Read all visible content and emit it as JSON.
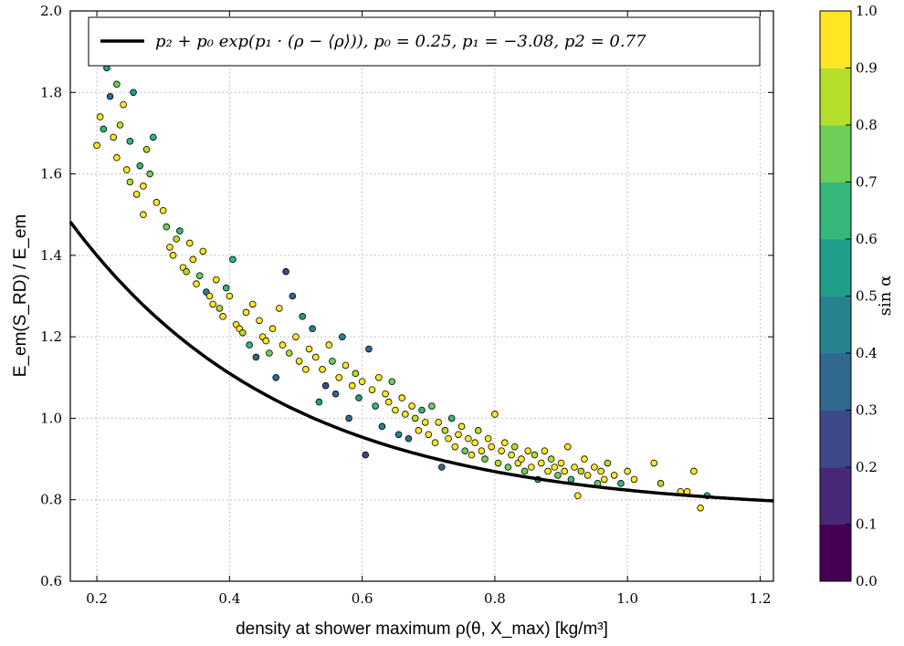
{
  "chart_data": {
    "type": "scatter",
    "xlabel": "density at shower maximum ρ(θ, X_max) [kg/m³]",
    "ylabel": "E_em(S_RD) / E_em",
    "xlim": [
      0.16,
      1.22
    ],
    "ylim": [
      0.6,
      2.0
    ],
    "x_ticks": [
      0.2,
      0.4,
      0.6,
      0.8,
      1.0,
      1.2
    ],
    "y_ticks": [
      0.6,
      0.8,
      1.0,
      1.2,
      1.4,
      1.6,
      1.8,
      2.0
    ],
    "x_tick_labels": [
      "0.2",
      "0.4",
      "0.6",
      "0.8",
      "1.0",
      "1.2"
    ],
    "y_tick_labels": [
      "0.6",
      "0.8",
      "1.0",
      "1.2",
      "1.4",
      "1.6",
      "1.8",
      "2.0"
    ],
    "grid": true,
    "legend_position": "top",
    "legend_label": "p₂ + p₀ exp(p₁ · (ρ − ⟨ρ⟩)), p₀ = 0.25, p₁ = −3.08, p2 = 0.77",
    "fit": {
      "name": "p₂ + p₀ exp(p₁ · (ρ − ⟨ρ⟩)), p₀ = 0.25, p₁ = −3.08, p2 = 0.77",
      "color": "#000000",
      "p0": 0.25,
      "p1": -3.08,
      "p2": 0.77,
      "rho_mean": 0.5
    },
    "colorbar": {
      "label": "sin α",
      "range": [
        0.0,
        1.0
      ],
      "ticks": [
        0.0,
        0.1,
        0.2,
        0.3,
        0.4,
        0.5,
        0.6,
        0.7,
        0.8,
        0.9,
        1.0
      ],
      "tick_labels": [
        "0.0",
        "0.1",
        "0.2",
        "0.3",
        "0.4",
        "0.5",
        "0.6",
        "0.7",
        "0.8",
        "0.9",
        "1.0"
      ],
      "colors": [
        "#440154",
        "#482878",
        "#3e4989",
        "#31688e",
        "#26828e",
        "#1f9e89",
        "#35b779",
        "#6ece58",
        "#b5de2b",
        "#fde725"
      ]
    },
    "points": [
      [
        0.2,
        1.67,
        0.95
      ],
      [
        0.205,
        1.74,
        0.9
      ],
      [
        0.21,
        1.71,
        0.6
      ],
      [
        0.215,
        1.86,
        0.5
      ],
      [
        0.22,
        1.79,
        0.3
      ],
      [
        0.225,
        1.69,
        0.9
      ],
      [
        0.23,
        1.82,
        0.7
      ],
      [
        0.23,
        1.64,
        0.95
      ],
      [
        0.235,
        1.72,
        0.8
      ],
      [
        0.24,
        1.77,
        0.95
      ],
      [
        0.245,
        1.61,
        0.95
      ],
      [
        0.25,
        1.58,
        0.8
      ],
      [
        0.25,
        1.68,
        0.6
      ],
      [
        0.255,
        1.8,
        0.5
      ],
      [
        0.26,
        1.55,
        0.95
      ],
      [
        0.265,
        1.62,
        0.6
      ],
      [
        0.27,
        1.5,
        0.95
      ],
      [
        0.27,
        1.57,
        0.9
      ],
      [
        0.275,
        1.66,
        0.8
      ],
      [
        0.28,
        1.6,
        0.7
      ],
      [
        0.285,
        1.69,
        0.6
      ],
      [
        0.29,
        1.53,
        0.9
      ],
      [
        0.3,
        1.51,
        0.95
      ],
      [
        0.305,
        1.47,
        0.7
      ],
      [
        0.31,
        1.42,
        0.95
      ],
      [
        0.315,
        1.4,
        0.9
      ],
      [
        0.32,
        1.44,
        0.8
      ],
      [
        0.325,
        1.46,
        0.6
      ],
      [
        0.33,
        1.37,
        0.95
      ],
      [
        0.335,
        1.36,
        0.8
      ],
      [
        0.34,
        1.43,
        0.95
      ],
      [
        0.345,
        1.39,
        0.9
      ],
      [
        0.35,
        1.33,
        0.95
      ],
      [
        0.355,
        1.35,
        0.7
      ],
      [
        0.36,
        1.41,
        0.95
      ],
      [
        0.365,
        1.31,
        0.4
      ],
      [
        0.37,
        1.3,
        0.95
      ],
      [
        0.375,
        1.28,
        0.9
      ],
      [
        0.38,
        1.34,
        0.95
      ],
      [
        0.385,
        1.27,
        0.8
      ],
      [
        0.39,
        1.25,
        0.95
      ],
      [
        0.395,
        1.32,
        0.6
      ],
      [
        0.4,
        1.3,
        0.95
      ],
      [
        0.405,
        1.39,
        0.6
      ],
      [
        0.41,
        1.23,
        0.95
      ],
      [
        0.415,
        1.22,
        0.9
      ],
      [
        0.42,
        1.21,
        0.8
      ],
      [
        0.425,
        1.26,
        0.95
      ],
      [
        0.43,
        1.18,
        0.6
      ],
      [
        0.435,
        1.28,
        0.95
      ],
      [
        0.44,
        1.15,
        0.3
      ],
      [
        0.445,
        1.24,
        0.95
      ],
      [
        0.45,
        1.2,
        0.95
      ],
      [
        0.455,
        1.19,
        0.9
      ],
      [
        0.46,
        1.16,
        0.7
      ],
      [
        0.465,
        1.22,
        0.95
      ],
      [
        0.47,
        1.1,
        0.3
      ],
      [
        0.475,
        1.27,
        0.95
      ],
      [
        0.48,
        1.18,
        0.95
      ],
      [
        0.485,
        1.36,
        0.2
      ],
      [
        0.49,
        1.16,
        0.8
      ],
      [
        0.495,
        1.3,
        0.3
      ],
      [
        0.5,
        1.2,
        0.95
      ],
      [
        0.505,
        1.14,
        0.9
      ],
      [
        0.51,
        1.25,
        0.5
      ],
      [
        0.515,
        1.12,
        0.95
      ],
      [
        0.52,
        1.17,
        0.95
      ],
      [
        0.525,
        1.22,
        0.4
      ],
      [
        0.53,
        1.15,
        0.9
      ],
      [
        0.535,
        1.04,
        0.5
      ],
      [
        0.54,
        1.12,
        0.95
      ],
      [
        0.545,
        1.08,
        0.2
      ],
      [
        0.55,
        1.18,
        0.95
      ],
      [
        0.555,
        1.14,
        0.7
      ],
      [
        0.56,
        1.06,
        0.3
      ],
      [
        0.565,
        1.1,
        0.95
      ],
      [
        0.57,
        1.2,
        0.4
      ],
      [
        0.575,
        1.13,
        0.95
      ],
      [
        0.58,
        1.0,
        0.3
      ],
      [
        0.585,
        1.08,
        0.95
      ],
      [
        0.59,
        1.11,
        0.8
      ],
      [
        0.595,
        1.05,
        0.5
      ],
      [
        0.6,
        1.09,
        0.95
      ],
      [
        0.605,
        0.91,
        0.2
      ],
      [
        0.61,
        1.17,
        0.3
      ],
      [
        0.615,
        1.07,
        0.95
      ],
      [
        0.62,
        1.03,
        0.6
      ],
      [
        0.625,
        1.1,
        0.9
      ],
      [
        0.63,
        0.98,
        0.4
      ],
      [
        0.635,
        1.06,
        0.95
      ],
      [
        0.64,
        1.04,
        0.95
      ],
      [
        0.645,
        1.09,
        0.7
      ],
      [
        0.65,
        1.02,
        0.95
      ],
      [
        0.655,
        0.96,
        0.4
      ],
      [
        0.66,
        1.05,
        0.9
      ],
      [
        0.665,
        1.01,
        0.95
      ],
      [
        0.67,
        0.95,
        0.3
      ],
      [
        0.675,
        1.03,
        0.95
      ],
      [
        0.68,
        1.0,
        0.8
      ],
      [
        0.685,
        0.97,
        0.95
      ],
      [
        0.69,
        1.02,
        0.6
      ],
      [
        0.695,
        0.99,
        0.95
      ],
      [
        0.7,
        0.96,
        0.9
      ],
      [
        0.705,
        1.03,
        0.7
      ],
      [
        0.71,
        0.94,
        0.95
      ],
      [
        0.715,
        0.99,
        0.95
      ],
      [
        0.72,
        0.88,
        0.3
      ],
      [
        0.725,
        0.97,
        0.8
      ],
      [
        0.73,
        0.95,
        0.95
      ],
      [
        0.735,
        1.0,
        0.6
      ],
      [
        0.74,
        0.93,
        0.95
      ],
      [
        0.745,
        0.96,
        0.9
      ],
      [
        0.75,
        0.98,
        0.95
      ],
      [
        0.755,
        0.92,
        0.7
      ],
      [
        0.76,
        0.95,
        0.95
      ],
      [
        0.765,
        0.91,
        0.9
      ],
      [
        0.77,
        0.94,
        0.95
      ],
      [
        0.775,
        0.97,
        0.8
      ],
      [
        0.78,
        0.92,
        0.95
      ],
      [
        0.785,
        0.9,
        0.7
      ],
      [
        0.79,
        0.95,
        0.95
      ],
      [
        0.795,
        0.93,
        0.9
      ],
      [
        0.8,
        1.01,
        0.95
      ],
      [
        0.805,
        0.89,
        0.8
      ],
      [
        0.81,
        0.92,
        0.95
      ],
      [
        0.815,
        0.94,
        0.9
      ],
      [
        0.82,
        0.88,
        0.7
      ],
      [
        0.825,
        0.91,
        0.95
      ],
      [
        0.83,
        0.93,
        0.8
      ],
      [
        0.835,
        0.89,
        0.95
      ],
      [
        0.84,
        0.9,
        0.9
      ],
      [
        0.845,
        0.87,
        0.7
      ],
      [
        0.85,
        0.92,
        0.95
      ],
      [
        0.855,
        0.88,
        0.95
      ],
      [
        0.86,
        0.91,
        0.8
      ],
      [
        0.865,
        0.85,
        0.6
      ],
      [
        0.87,
        0.89,
        0.95
      ],
      [
        0.875,
        0.92,
        0.9
      ],
      [
        0.88,
        0.87,
        0.95
      ],
      [
        0.885,
        0.9,
        0.8
      ],
      [
        0.89,
        0.88,
        0.95
      ],
      [
        0.895,
        0.86,
        0.7
      ],
      [
        0.9,
        0.89,
        0.95
      ],
      [
        0.905,
        0.87,
        0.9
      ],
      [
        0.91,
        0.93,
        0.95
      ],
      [
        0.915,
        0.85,
        0.6
      ],
      [
        0.92,
        0.88,
        0.95
      ],
      [
        0.925,
        0.81,
        0.95
      ],
      [
        0.93,
        0.87,
        0.8
      ],
      [
        0.935,
        0.9,
        0.95
      ],
      [
        0.94,
        0.86,
        0.9
      ],
      [
        0.95,
        0.88,
        0.95
      ],
      [
        0.955,
        0.84,
        0.7
      ],
      [
        0.96,
        0.87,
        0.95
      ],
      [
        0.965,
        0.85,
        0.9
      ],
      [
        0.97,
        0.89,
        0.8
      ],
      [
        0.98,
        0.86,
        0.95
      ],
      [
        0.99,
        0.84,
        0.6
      ],
      [
        1.0,
        0.87,
        0.9
      ],
      [
        1.01,
        0.85,
        0.95
      ],
      [
        1.04,
        0.89,
        0.95
      ],
      [
        1.05,
        0.84,
        0.8
      ],
      [
        1.08,
        0.82,
        0.9
      ],
      [
        1.09,
        0.82,
        0.95
      ],
      [
        1.1,
        0.87,
        0.9
      ],
      [
        1.11,
        0.78,
        0.95
      ],
      [
        1.12,
        0.81,
        0.6
      ]
    ]
  }
}
